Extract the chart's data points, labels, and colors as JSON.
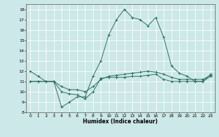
{
  "xlabel": "Humidex (Indice chaleur)",
  "ylabel": "",
  "background_color": "#cce8e8",
  "grid_color": "#ffffff",
  "line_color": "#2d6e62",
  "xlim": [
    -0.5,
    23.5
  ],
  "ylim": [
    8,
    18.5
  ],
  "yticks": [
    8,
    9,
    10,
    11,
    12,
    13,
    14,
    15,
    16,
    17,
    18
  ],
  "xticks": [
    0,
    1,
    2,
    3,
    4,
    5,
    6,
    7,
    8,
    9,
    10,
    11,
    12,
    13,
    14,
    15,
    16,
    17,
    18,
    19,
    20,
    21,
    22,
    23
  ],
  "series": [
    {
      "x": [
        0,
        1,
        2,
        3,
        4,
        5,
        6,
        7,
        8,
        9,
        10,
        11,
        12,
        13,
        14,
        15,
        16,
        17,
        18,
        19,
        20,
        21,
        22,
        23
      ],
      "y": [
        12.0,
        11.5,
        11.0,
        11.0,
        8.5,
        9.0,
        9.5,
        9.5,
        11.5,
        13.0,
        15.5,
        17.0,
        18.0,
        17.2,
        17.0,
        16.4,
        17.2,
        15.3,
        12.5,
        11.8,
        11.5,
        11.0,
        11.0,
        11.7
      ]
    },
    {
      "x": [
        0,
        1,
        2,
        3,
        4,
        5,
        6,
        7,
        8,
        9,
        10,
        11,
        12,
        13,
        14,
        15,
        16,
        17,
        18,
        19,
        20,
        21,
        22,
        23
      ],
      "y": [
        11.0,
        11.0,
        11.0,
        11.0,
        10.0,
        9.8,
        9.7,
        9.3,
        10.0,
        11.3,
        11.4,
        11.4,
        11.4,
        11.5,
        11.5,
        11.6,
        11.7,
        11.2,
        11.0,
        11.0,
        11.0,
        11.0,
        11.0,
        11.5
      ]
    },
    {
      "x": [
        0,
        1,
        2,
        3,
        4,
        5,
        6,
        7,
        8,
        9,
        10,
        11,
        12,
        13,
        14,
        15,
        16,
        17,
        18,
        19,
        20,
        21,
        22,
        23
      ],
      "y": [
        11.0,
        11.0,
        11.0,
        11.0,
        10.5,
        10.2,
        10.2,
        10.0,
        10.5,
        11.2,
        11.5,
        11.6,
        11.7,
        11.8,
        11.9,
        12.0,
        11.9,
        11.7,
        11.4,
        11.2,
        11.2,
        11.2,
        11.2,
        11.6
      ]
    }
  ]
}
